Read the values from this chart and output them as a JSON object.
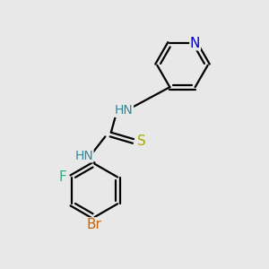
{
  "background_color": "#e8e8e8",
  "bond_color": "#000000",
  "atom_colors": {
    "N": "#0000cc",
    "S": "#aaaa00",
    "F": "#33aa88",
    "Br": "#cc6600",
    "NH_upper": "#338899",
    "NH_lower": "#338899",
    "C": "#000000"
  },
  "font_size_atoms": 11,
  "font_size_nh": 10,
  "line_width": 1.6,
  "figsize": [
    3.0,
    3.0
  ],
  "dpi": 100,
  "xlim": [
    0,
    10
  ],
  "ylim": [
    0,
    10
  ]
}
